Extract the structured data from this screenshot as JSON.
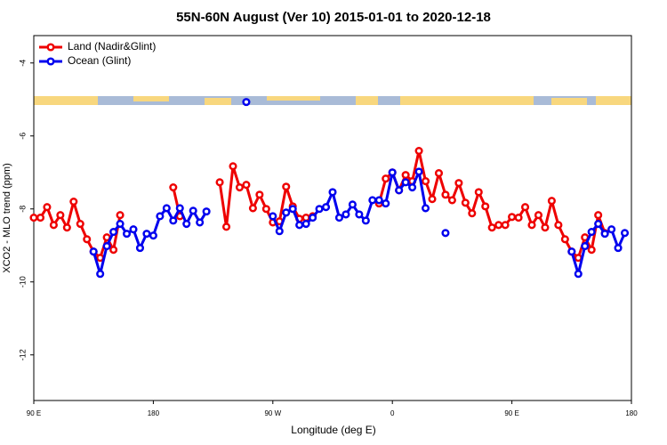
{
  "chart_data": {
    "type": "line",
    "title": "55N-60N August (Ver 10)   2015-01-01 to 2020-12-18",
    "xlabel": "Longitude (deg E)",
    "ylabel": "XCO2 - MLO trend (ppm)",
    "x": [
      90,
      95,
      100,
      105,
      110,
      115,
      120,
      125,
      130,
      135,
      140,
      145,
      150,
      155,
      160,
      165,
      170,
      175,
      180,
      185,
      190,
      195,
      200,
      205,
      210,
      215,
      220,
      225,
      230,
      235,
      240,
      245,
      250,
      255,
      260,
      265,
      270,
      275,
      280,
      285,
      290,
      295,
      300,
      305,
      310,
      315,
      320,
      325,
      330,
      335,
      340,
      345,
      350,
      355,
      360,
      365,
      370,
      375,
      380,
      385,
      390,
      395,
      400,
      405,
      410,
      415,
      420,
      425,
      430,
      435,
      440,
      445,
      450,
      455,
      460,
      465,
      470,
      475,
      480,
      485,
      490,
      495,
      500,
      505,
      510,
      515,
      520,
      525,
      530,
      535,
      540
    ],
    "series": [
      {
        "name": "Land (Nadir&Glint)",
        "color": "#ee0000",
        "values": [
          -8.24,
          -8.24,
          -7.95,
          -8.44,
          -8.17,
          -8.51,
          -7.8,
          -8.41,
          -8.83,
          -9.17,
          -9.34,
          -8.78,
          -9.12,
          -8.17,
          null,
          null,
          null,
          null,
          null,
          null,
          null,
          -7.41,
          -8.2,
          null,
          null,
          null,
          null,
          null,
          -7.27,
          -8.49,
          -6.83,
          -7.41,
          -7.34,
          -7.98,
          -7.61,
          -8.0,
          -8.37,
          -8.34,
          -7.39,
          -7.93,
          -8.27,
          -8.24,
          -8.2,
          null,
          null,
          null,
          null,
          null,
          null,
          null,
          null,
          null,
          -7.85,
          -7.17,
          -7.0,
          -7.49,
          -7.07,
          -7.24,
          -6.41,
          -7.24,
          -7.73,
          -7.02,
          -7.61,
          -7.76,
          -7.29,
          -7.83,
          -8.12,
          -7.54,
          -7.93,
          -8.51,
          -8.44,
          -8.44,
          -8.22,
          -8.24,
          -7.95,
          -8.44,
          -8.17,
          -8.51,
          -7.78,
          -8.44,
          -8.83,
          -9.17,
          -9.34,
          -8.78,
          -9.12,
          -8.17,
          -8.66,
          null,
          null,
          null,
          null
        ]
      },
      {
        "name": "Ocean (Glint)",
        "color": "#0000ee",
        "values": [
          null,
          null,
          null,
          null,
          null,
          null,
          null,
          null,
          null,
          -9.17,
          -9.78,
          -9.02,
          -8.63,
          -8.41,
          -8.68,
          -8.56,
          -9.07,
          -8.68,
          -8.73,
          -8.2,
          -7.98,
          -8.32,
          -7.98,
          -8.41,
          -8.05,
          -8.37,
          -8.07,
          null,
          null,
          null,
          null,
          null,
          -5.07,
          null,
          null,
          null,
          -8.2,
          -8.61,
          -8.1,
          -8.0,
          -8.44,
          -8.41,
          -8.24,
          -8.0,
          -7.95,
          -7.54,
          -8.24,
          -8.15,
          -7.88,
          -8.15,
          -8.32,
          -7.76,
          -7.76,
          -7.85,
          -7.0,
          -7.49,
          -7.27,
          -7.41,
          -6.98,
          -7.98,
          null,
          null,
          -8.66,
          null,
          null,
          null,
          null,
          null,
          null,
          null,
          null,
          null,
          null,
          null,
          null,
          null,
          null,
          null,
          null,
          null,
          null,
          -9.17,
          -9.78,
          -9.02,
          -8.63,
          -8.41,
          -8.68,
          -8.56,
          -9.07,
          -8.66,
          null
        ]
      }
    ],
    "xlim": [
      90,
      540
    ],
    "xticks": [
      {
        "value": 90,
        "label": "90 E"
      },
      180,
      {
        "value": 270,
        "label": "90 W"
      },
      {
        "value": 360,
        "label": "0"
      },
      {
        "value": 450,
        "label": "90 E"
      },
      {
        "value": 540,
        "label": "180"
      }
    ],
    "ylim": [
      -13.25,
      -3.25
    ],
    "yticks": [
      -4,
      -6,
      -8,
      -10,
      -12
    ],
    "legend": "top-left"
  }
}
